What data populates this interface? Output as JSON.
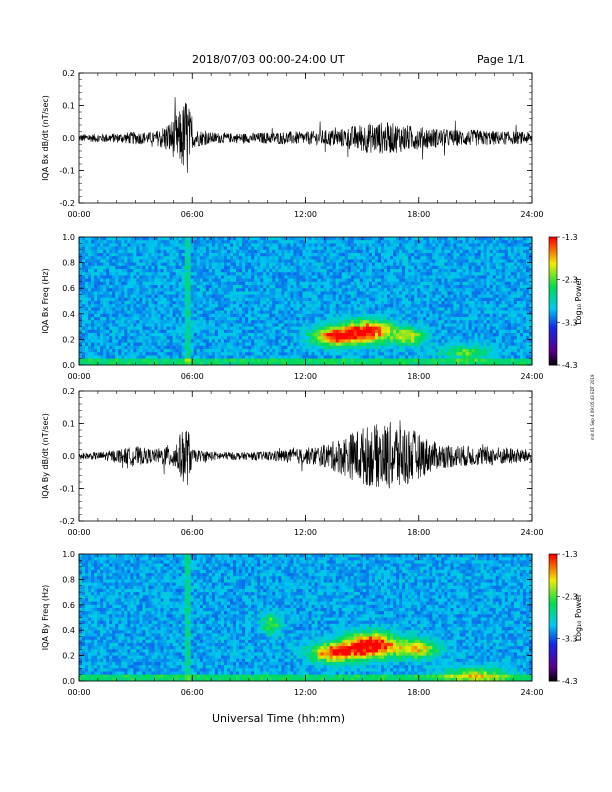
{
  "header": {
    "date_range": "2018/07/03  00:00-24:00 UT",
    "page": "Page 1/1"
  },
  "footer": {
    "side_note": "mit 01 Sep 4 09:05:43 EDT 2019"
  },
  "chart_data": [
    {
      "type": "line",
      "ylabel": "IQA Bx dB/dt (nT/sec)",
      "x_tick_labels": [
        "00:00",
        "06:00",
        "12:00",
        "18:00",
        "24:00"
      ],
      "xlim": [
        0,
        24
      ],
      "ylim": [
        -0.2,
        0.2
      ],
      "y_tick_labels": [
        "0.2",
        "0.1",
        "0.0",
        "-0.1",
        "-0.2"
      ],
      "y_tick_values": [
        0.2,
        0.1,
        0.0,
        -0.1,
        -0.2
      ],
      "series": [
        {
          "x": [
            0,
            1,
            2,
            3,
            4,
            5,
            5.5,
            5.7,
            5.9,
            6,
            7,
            8,
            9,
            10,
            11,
            12,
            13,
            14,
            15,
            16,
            17,
            18,
            19,
            20,
            21,
            22,
            23,
            24
          ],
          "amplitude": [
            0.012,
            0.013,
            0.015,
            0.02,
            0.018,
            0.06,
            0.1,
            0.14,
            0.08,
            0.03,
            0.018,
            0.015,
            0.015,
            0.018,
            0.02,
            0.02,
            0.025,
            0.03,
            0.045,
            0.05,
            0.045,
            0.035,
            0.03,
            0.025,
            0.025,
            0.022,
            0.02,
            0.018
          ]
        }
      ]
    },
    {
      "type": "heatmap",
      "ylabel": "IQA Bx Freq (Hz)",
      "x_tick_labels": [
        "00:00",
        "06:00",
        "12:00",
        "18:00",
        "24:00"
      ],
      "xlim": [
        0,
        24
      ],
      "ylim": [
        0.0,
        1.0
      ],
      "y_tick_labels": [
        "1.0",
        "0.8",
        "0.6",
        "0.4",
        "0.2",
        "0.0"
      ],
      "y_tick_values": [
        1.0,
        0.8,
        0.6,
        0.4,
        0.2,
        0.0
      ],
      "colorbar": {
        "label": "Log₁₀ Power",
        "tick_labels": [
          "-1.3",
          "-2.3",
          "-3.3",
          "-4.3"
        ],
        "tick_values": [
          -1.3,
          -2.3,
          -3.3,
          -4.3
        ]
      }
    },
    {
      "type": "line",
      "ylabel": "IQA By dB/dt (nT/sec)",
      "x_tick_labels": [
        "00:00",
        "06:00",
        "12:00",
        "18:00",
        "24:00"
      ],
      "xlim": [
        0,
        24
      ],
      "ylim": [
        -0.2,
        0.2
      ],
      "y_tick_labels": [
        "0.2",
        "0.1",
        "0.0",
        "-0.1",
        "-0.2"
      ],
      "y_tick_values": [
        0.2,
        0.1,
        0.0,
        -0.1,
        -0.2
      ],
      "series": [
        {
          "x": [
            0,
            1,
            2,
            3,
            4,
            5,
            5.5,
            5.7,
            5.9,
            6,
            7,
            8,
            9,
            10,
            11,
            12,
            13,
            14,
            15,
            16,
            17,
            18,
            19,
            20,
            21,
            22,
            23,
            24
          ],
          "amplitude": [
            0.01,
            0.012,
            0.02,
            0.03,
            0.02,
            0.04,
            0.08,
            0.1,
            0.06,
            0.02,
            0.015,
            0.012,
            0.012,
            0.015,
            0.02,
            0.025,
            0.035,
            0.06,
            0.09,
            0.1,
            0.11,
            0.07,
            0.04,
            0.035,
            0.03,
            0.03,
            0.025,
            0.02
          ]
        }
      ]
    },
    {
      "type": "heatmap",
      "ylabel": "IQA By Freq (Hz)",
      "x_tick_labels": [
        "00:00",
        "06:00",
        "12:00",
        "18:00",
        "24:00"
      ],
      "xlim": [
        0,
        24
      ],
      "ylim": [
        0.0,
        1.0
      ],
      "y_tick_labels": [
        "1.0",
        "0.8",
        "0.6",
        "0.4",
        "0.2",
        "0.0"
      ],
      "y_tick_values": [
        1.0,
        0.8,
        0.6,
        0.4,
        0.2,
        0.0
      ],
      "colorbar": {
        "label": "Log₁₀ Power",
        "tick_labels": [
          "-1.3",
          "-2.3",
          "-3.3",
          "-4.3"
        ],
        "tick_values": [
          -1.3,
          -2.3,
          -3.3,
          -4.3
        ]
      }
    }
  ],
  "xaxis_label": "Universal Time (hh:mm)",
  "colors": {
    "trace": "#000000",
    "background": "#0a2fd8",
    "hot": "#ff2a00",
    "warm": "#f5e800",
    "mid": "#00e05a"
  }
}
